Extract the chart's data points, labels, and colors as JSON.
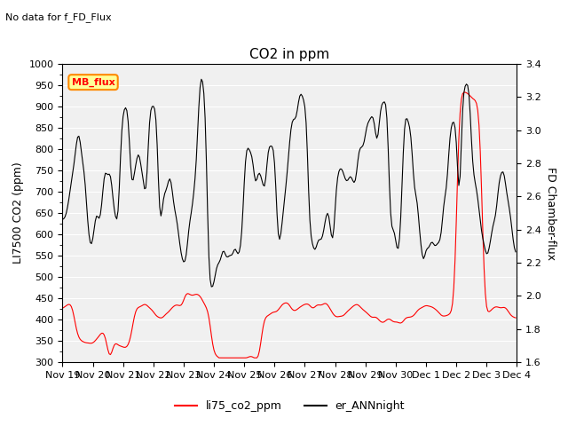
{
  "title": "CO2 in ppm",
  "subtitle": "No data for f_FD_Flux",
  "ylabel_left": "LI7500 CO2 (ppm)",
  "ylabel_right": "FD Chamber-flux",
  "ylim_left": [
    300,
    1000
  ],
  "ylim_right": [
    1.6,
    3.4
  ],
  "yticks_left": [
    300,
    350,
    400,
    450,
    500,
    550,
    600,
    650,
    700,
    750,
    800,
    850,
    900,
    950,
    1000
  ],
  "yticks_right": [
    1.6,
    1.8,
    2.0,
    2.2,
    2.4,
    2.6,
    2.8,
    3.0,
    3.2,
    3.4
  ],
  "legend_label_red": "li75_co2_ppm",
  "legend_label_black": "er_ANNnight",
  "mb_flux_label": "MB_flux",
  "color_red": "#FF0000",
  "color_black": "#000000",
  "color_bg": "#F0F0F0",
  "mb_flux_bg": "#FFFF99",
  "mb_flux_border": "#FF8800"
}
